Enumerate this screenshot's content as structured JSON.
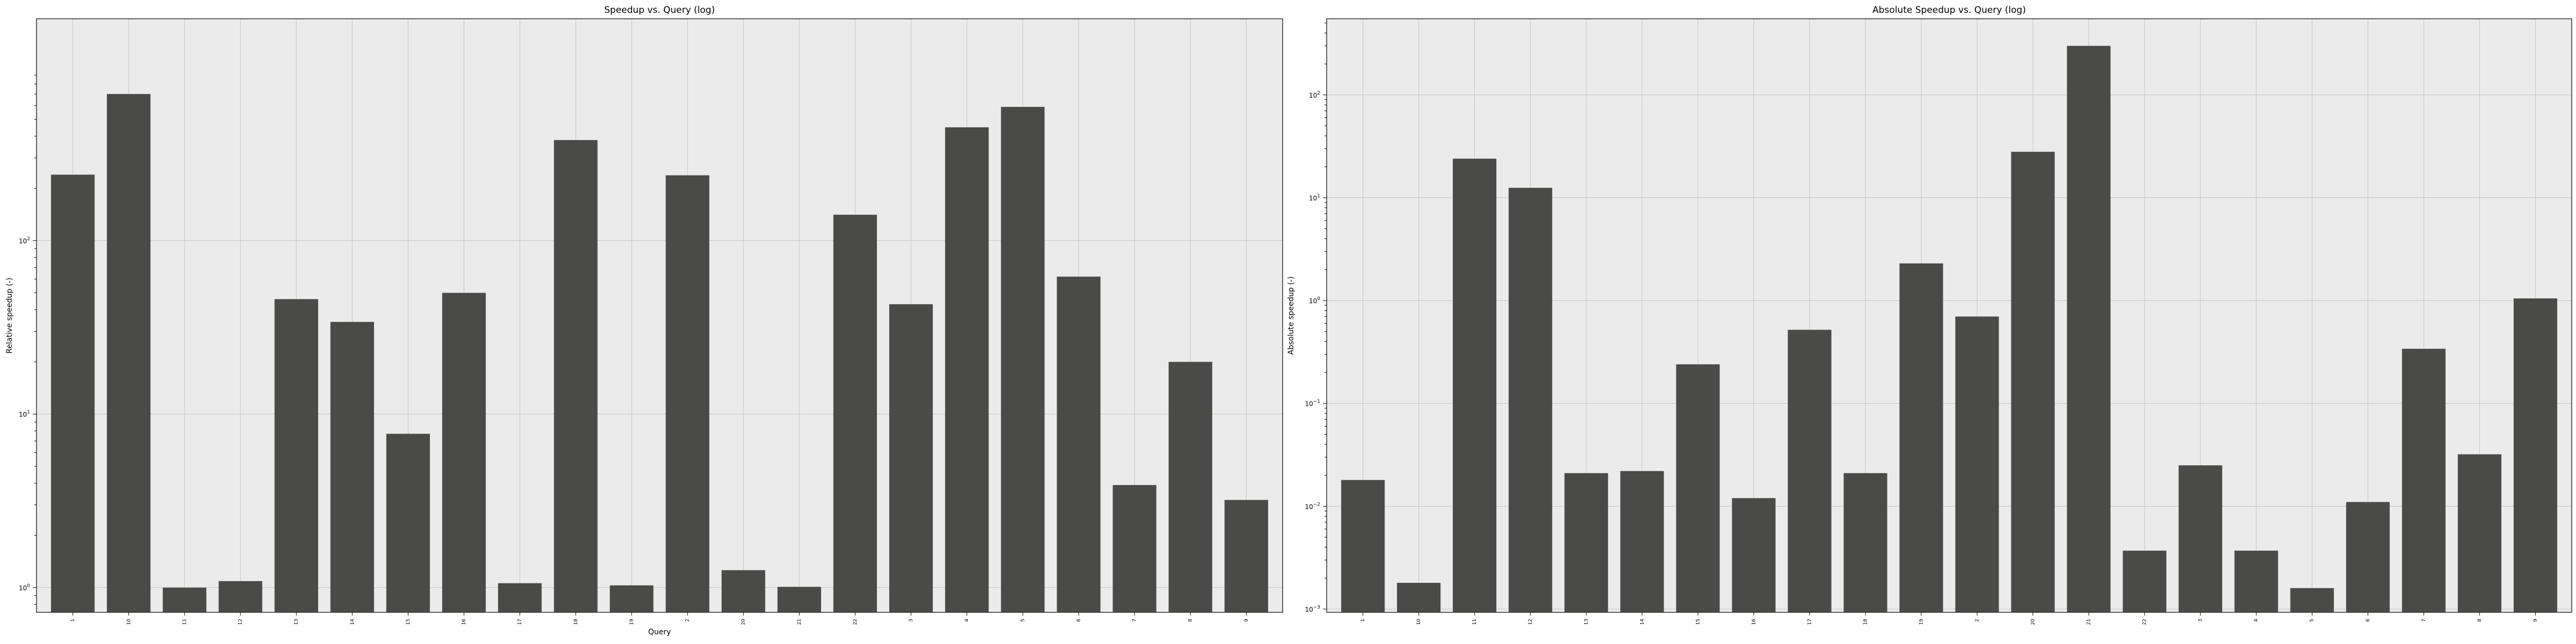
{
  "chart_data": [
    {
      "type": "bar",
      "title": "Speedup vs. Query (log)",
      "xlabel": "Query",
      "ylabel": "Relative speedup (-)",
      "yscale": "log",
      "ylim": [
        0.72,
        1900
      ],
      "yticks": [
        {
          "value": 1,
          "base": "10",
          "exp": "0"
        },
        {
          "value": 10,
          "base": "10",
          "exp": "1"
        },
        {
          "value": 100,
          "base": "10",
          "exp": "2"
        }
      ],
      "grid": true,
      "color": "#4a4a48",
      "categories": [
        "1",
        "10",
        "11",
        "12",
        "13",
        "14",
        "15",
        "16",
        "17",
        "18",
        "19",
        "2",
        "20",
        "21",
        "22",
        "3",
        "4",
        "5",
        "6",
        "7",
        "8",
        "9"
      ],
      "values": [
        240,
        700,
        1.0,
        1.09,
        46,
        34,
        7.7,
        50,
        1.06,
        380,
        1.03,
        238,
        1.26,
        1.01,
        141,
        43,
        450,
        590,
        62,
        3.9,
        20,
        3.2
      ]
    },
    {
      "type": "bar",
      "title": "Absolute Speedup vs. Query (log)",
      "xlabel": "",
      "ylabel": "Absolute speedup (-)",
      "yscale": "log",
      "ylim": [
        0.00093,
        550
      ],
      "yticks": [
        {
          "value": 0.001,
          "base": "10",
          "exp": "−3"
        },
        {
          "value": 0.01,
          "base": "10",
          "exp": "−2"
        },
        {
          "value": 0.1,
          "base": "10",
          "exp": "−1"
        },
        {
          "value": 1,
          "base": "10",
          "exp": "0"
        },
        {
          "value": 10,
          "base": "10",
          "exp": "1"
        },
        {
          "value": 100,
          "base": "10",
          "exp": "2"
        }
      ],
      "grid": true,
      "color": "#4a4a48",
      "categories": [
        "1",
        "10",
        "11",
        "12",
        "13",
        "14",
        "15",
        "16",
        "17",
        "18",
        "19",
        "2",
        "20",
        "21",
        "22",
        "3",
        "4",
        "5",
        "6",
        "7",
        "8",
        "9"
      ],
      "values": [
        0.018,
        0.0018,
        24,
        12.5,
        0.021,
        0.022,
        0.24,
        0.012,
        0.52,
        0.021,
        2.3,
        0.7,
        28,
        300,
        0.0037,
        0.025,
        0.0037,
        0.0016,
        0.011,
        0.34,
        0.032,
        1.05
      ]
    }
  ]
}
